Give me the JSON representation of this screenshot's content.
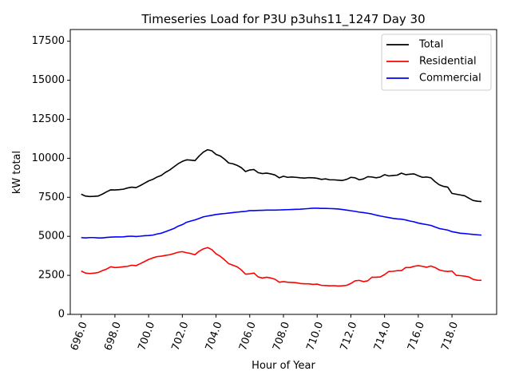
{
  "chart_data": {
    "type": "line",
    "title": "Timeseries Load for P3U p3uhs11_1247  Day 30",
    "xlabel": "Hour of Year",
    "ylabel": "kW total",
    "xlim": [
      695.35,
      720.65
    ],
    "ylim": [
      0,
      18250
    ],
    "x_ticks": [
      696,
      698,
      700,
      702,
      704,
      706,
      708,
      710,
      712,
      714,
      716,
      718
    ],
    "x_tick_labels": [
      "696.0",
      "698.0",
      "700.0",
      "702.0",
      "704.0",
      "706.0",
      "708.0",
      "710.0",
      "712.0",
      "714.0",
      "716.0",
      "718.0"
    ],
    "y_ticks": [
      0,
      2500,
      5000,
      7500,
      10000,
      12500,
      15000,
      17500
    ],
    "y_tick_labels": [
      "0",
      "2500",
      "5000",
      "7500",
      "10000",
      "12500",
      "15000",
      "17500"
    ],
    "legend_position": "top-right",
    "x": [
      696.0,
      696.25,
      696.5,
      696.75,
      697.0,
      697.25,
      697.5,
      697.75,
      698.0,
      698.25,
      698.5,
      698.75,
      699.0,
      699.25,
      699.5,
      699.75,
      700.0,
      700.25,
      700.5,
      700.75,
      701.0,
      701.25,
      701.5,
      701.75,
      702.0,
      702.25,
      702.5,
      702.75,
      703.0,
      703.25,
      703.5,
      703.75,
      704.0,
      704.25,
      704.5,
      704.75,
      705.0,
      705.25,
      705.5,
      705.75,
      706.0,
      706.25,
      706.5,
      706.75,
      707.0,
      707.25,
      707.5,
      707.75,
      708.0,
      708.25,
      708.5,
      708.75,
      709.0,
      709.25,
      709.5,
      709.75,
      710.0,
      710.25,
      710.5,
      710.75,
      711.0,
      711.25,
      711.5,
      711.75,
      712.0,
      712.25,
      712.5,
      712.75,
      713.0,
      713.25,
      713.5,
      713.75,
      714.0,
      714.25,
      714.5,
      714.75,
      715.0,
      715.25,
      715.5,
      715.75,
      716.0,
      716.25,
      716.5,
      716.75,
      717.0,
      717.25,
      717.5,
      717.75,
      718.0,
      718.25,
      718.5,
      718.75,
      719.0,
      719.25,
      719.5,
      719.75
    ],
    "series": [
      {
        "name": "Total",
        "color": "#000000",
        "values": [
          7700,
          7580,
          7550,
          7560,
          7580,
          7700,
          7850,
          7980,
          7970,
          7990,
          8020,
          8100,
          8150,
          8120,
          8250,
          8400,
          8550,
          8650,
          8800,
          8900,
          9100,
          9250,
          9450,
          9650,
          9800,
          9900,
          9880,
          9850,
          10150,
          10400,
          10550,
          10480,
          10250,
          10150,
          9950,
          9700,
          9650,
          9550,
          9400,
          9150,
          9250,
          9280,
          9080,
          9020,
          9050,
          9000,
          8930,
          8750,
          8850,
          8780,
          8800,
          8780,
          8750,
          8730,
          8760,
          8750,
          8720,
          8650,
          8680,
          8620,
          8620,
          8600,
          8580,
          8650,
          8780,
          8750,
          8620,
          8680,
          8820,
          8800,
          8750,
          8800,
          8950,
          8870,
          8900,
          8920,
          9050,
          8950,
          8980,
          9000,
          8880,
          8780,
          8800,
          8750,
          8500,
          8300,
          8200,
          8150,
          7750,
          7700,
          7650,
          7600,
          7450,
          7300,
          7250,
          7230
        ]
      },
      {
        "name": "Residential",
        "color": "#ff0000",
        "values": [
          2780,
          2650,
          2620,
          2640,
          2680,
          2800,
          2900,
          3050,
          3000,
          3020,
          3050,
          3080,
          3150,
          3120,
          3250,
          3380,
          3520,
          3620,
          3700,
          3730,
          3780,
          3820,
          3900,
          3980,
          4020,
          3950,
          3900,
          3820,
          4050,
          4200,
          4280,
          4150,
          3880,
          3720,
          3500,
          3250,
          3150,
          3050,
          2850,
          2580,
          2600,
          2650,
          2400,
          2330,
          2380,
          2330,
          2250,
          2060,
          2100,
          2060,
          2050,
          2030,
          1980,
          1960,
          1960,
          1920,
          1940,
          1860,
          1850,
          1830,
          1840,
          1820,
          1830,
          1860,
          1980,
          2150,
          2180,
          2100,
          2150,
          2380,
          2380,
          2400,
          2550,
          2750,
          2760,
          2800,
          2800,
          3000,
          3000,
          3080,
          3120,
          3080,
          3020,
          3100,
          3000,
          2850,
          2780,
          2750,
          2780,
          2500,
          2480,
          2450,
          2400,
          2250,
          2190,
          2180
        ]
      },
      {
        "name": "Commercial",
        "color": "#0000ff",
        "values": [
          4920,
          4900,
          4920,
          4920,
          4900,
          4900,
          4930,
          4950,
          4960,
          4960,
          4970,
          5000,
          5010,
          4990,
          5010,
          5040,
          5050,
          5080,
          5150,
          5200,
          5300,
          5400,
          5500,
          5650,
          5750,
          5900,
          5980,
          6050,
          6150,
          6250,
          6300,
          6350,
          6400,
          6430,
          6460,
          6490,
          6520,
          6550,
          6580,
          6600,
          6650,
          6650,
          6660,
          6670,
          6680,
          6680,
          6680,
          6690,
          6700,
          6710,
          6720,
          6730,
          6740,
          6760,
          6780,
          6800,
          6800,
          6790,
          6790,
          6780,
          6770,
          6750,
          6720,
          6680,
          6640,
          6600,
          6550,
          6520,
          6480,
          6430,
          6360,
          6300,
          6250,
          6200,
          6150,
          6120,
          6100,
          6050,
          5980,
          5930,
          5850,
          5800,
          5750,
          5700,
          5600,
          5500,
          5450,
          5400,
          5300,
          5250,
          5200,
          5180,
          5150,
          5120,
          5100,
          5080
        ]
      }
    ]
  }
}
